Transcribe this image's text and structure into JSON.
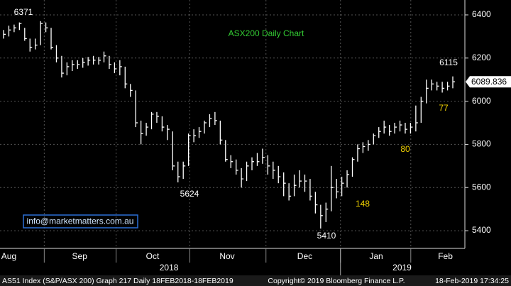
{
  "chart_data": {
    "type": "ohlc",
    "title": "ASX200 Daily Chart",
    "color": "#ffffff",
    "high": [
      6330,
      6350,
      6355,
      6365,
      6340,
      6290,
      6290,
      6371,
      6365,
      6340,
      6260,
      6210,
      6180,
      6190,
      6190,
      6200,
      6205,
      6210,
      6205,
      6230,
      6210,
      6180,
      6190,
      6160,
      6080,
      6050,
      5910,
      5900,
      5950,
      5950,
      5930,
      5890,
      5860,
      5720,
      5720,
      5850,
      5870,
      5880,
      5910,
      5940,
      5950,
      5910,
      5820,
      5750,
      5730,
      5690,
      5720,
      5740,
      5760,
      5780,
      5750,
      5720,
      5700,
      5670,
      5620,
      5660,
      5680,
      5660,
      5640,
      5580,
      5520,
      5530,
      5700,
      5640,
      5650,
      5680,
      5740,
      5800,
      5810,
      5820,
      5850,
      5880,
      5910,
      5890,
      5900,
      5910,
      5900,
      5900,
      5980,
      6020,
      6100,
      6100,
      6090,
      6090,
      6090,
      6115
    ],
    "low": [
      6290,
      6300,
      6320,
      6330,
      6280,
      6230,
      6240,
      6260,
      6320,
      6240,
      6180,
      6110,
      6120,
      6140,
      6150,
      6155,
      6165,
      6170,
      6170,
      6180,
      6150,
      6130,
      6120,
      6060,
      6020,
      5880,
      5800,
      5840,
      5870,
      5900,
      5860,
      5820,
      5680,
      5624,
      5640,
      5700,
      5810,
      5830,
      5850,
      5880,
      5890,
      5800,
      5720,
      5690,
      5660,
      5600,
      5630,
      5680,
      5700,
      5710,
      5660,
      5640,
      5620,
      5560,
      5540,
      5560,
      5600,
      5580,
      5540,
      5480,
      5410,
      5440,
      5490,
      5550,
      5560,
      5600,
      5650,
      5720,
      5760,
      5770,
      5800,
      5830,
      5850,
      5840,
      5850,
      5860,
      5850,
      5850,
      5860,
      5900,
      5990,
      6050,
      6050,
      6040,
      6050,
      6060
    ],
    "close": [
      6310,
      6330,
      6340,
      6360,
      6290,
      6250,
      6260,
      6360,
      6340,
      6250,
      6200,
      6130,
      6160,
      6170,
      6170,
      6180,
      6190,
      6190,
      6190,
      6210,
      6170,
      6150,
      6160,
      6080,
      6050,
      5900,
      5850,
      5880,
      5940,
      5930,
      5880,
      5870,
      5700,
      5650,
      5700,
      5840,
      5840,
      5860,
      5900,
      5920,
      5910,
      5820,
      5730,
      5720,
      5680,
      5640,
      5700,
      5720,
      5720,
      5740,
      5700,
      5680,
      5650,
      5620,
      5560,
      5610,
      5630,
      5630,
      5560,
      5520,
      5470,
      5500,
      5600,
      5580,
      5620,
      5660,
      5730,
      5780,
      5790,
      5800,
      5840,
      5860,
      5880,
      5860,
      5880,
      5890,
      5870,
      5880,
      5900,
      6000,
      6060,
      6080,
      6070,
      6060,
      6070,
      6089.836
    ],
    "ylim": [
      5318,
      6469
    ],
    "yticks": [
      5400,
      5600,
      5800,
      6000,
      6200,
      6400
    ],
    "xticks": [
      {
        "value": 1,
        "label": "Aug"
      },
      {
        "value": 14.4,
        "label": "Sep"
      },
      {
        "value": 28.2,
        "label": "Oct"
      },
      {
        "value": 42.3,
        "label": "Nov"
      },
      {
        "value": 57,
        "label": "Dec"
      },
      {
        "value": 70.5,
        "label": "Jan"
      },
      {
        "value": 83.6,
        "label": "Feb"
      }
    ],
    "year_ticks": [
      {
        "value": 31.3,
        "label": "2018"
      },
      {
        "value": 75.4,
        "label": "2019"
      }
    ],
    "grid": true,
    "annotations": [
      "6371",
      "6115",
      "5624",
      "5410",
      "77",
      "80",
      "148"
    ],
    "email": "info@marketmatters.com.au",
    "footer": [
      "AS51 Index (S&P/ASX 200) Graph 217  Daily 18FEB2018-18FEB2019",
      "Copyright© 2019 Bloomberg Finance L.P.",
      "18-Feb-2019 17:34:25"
    ]
  }
}
